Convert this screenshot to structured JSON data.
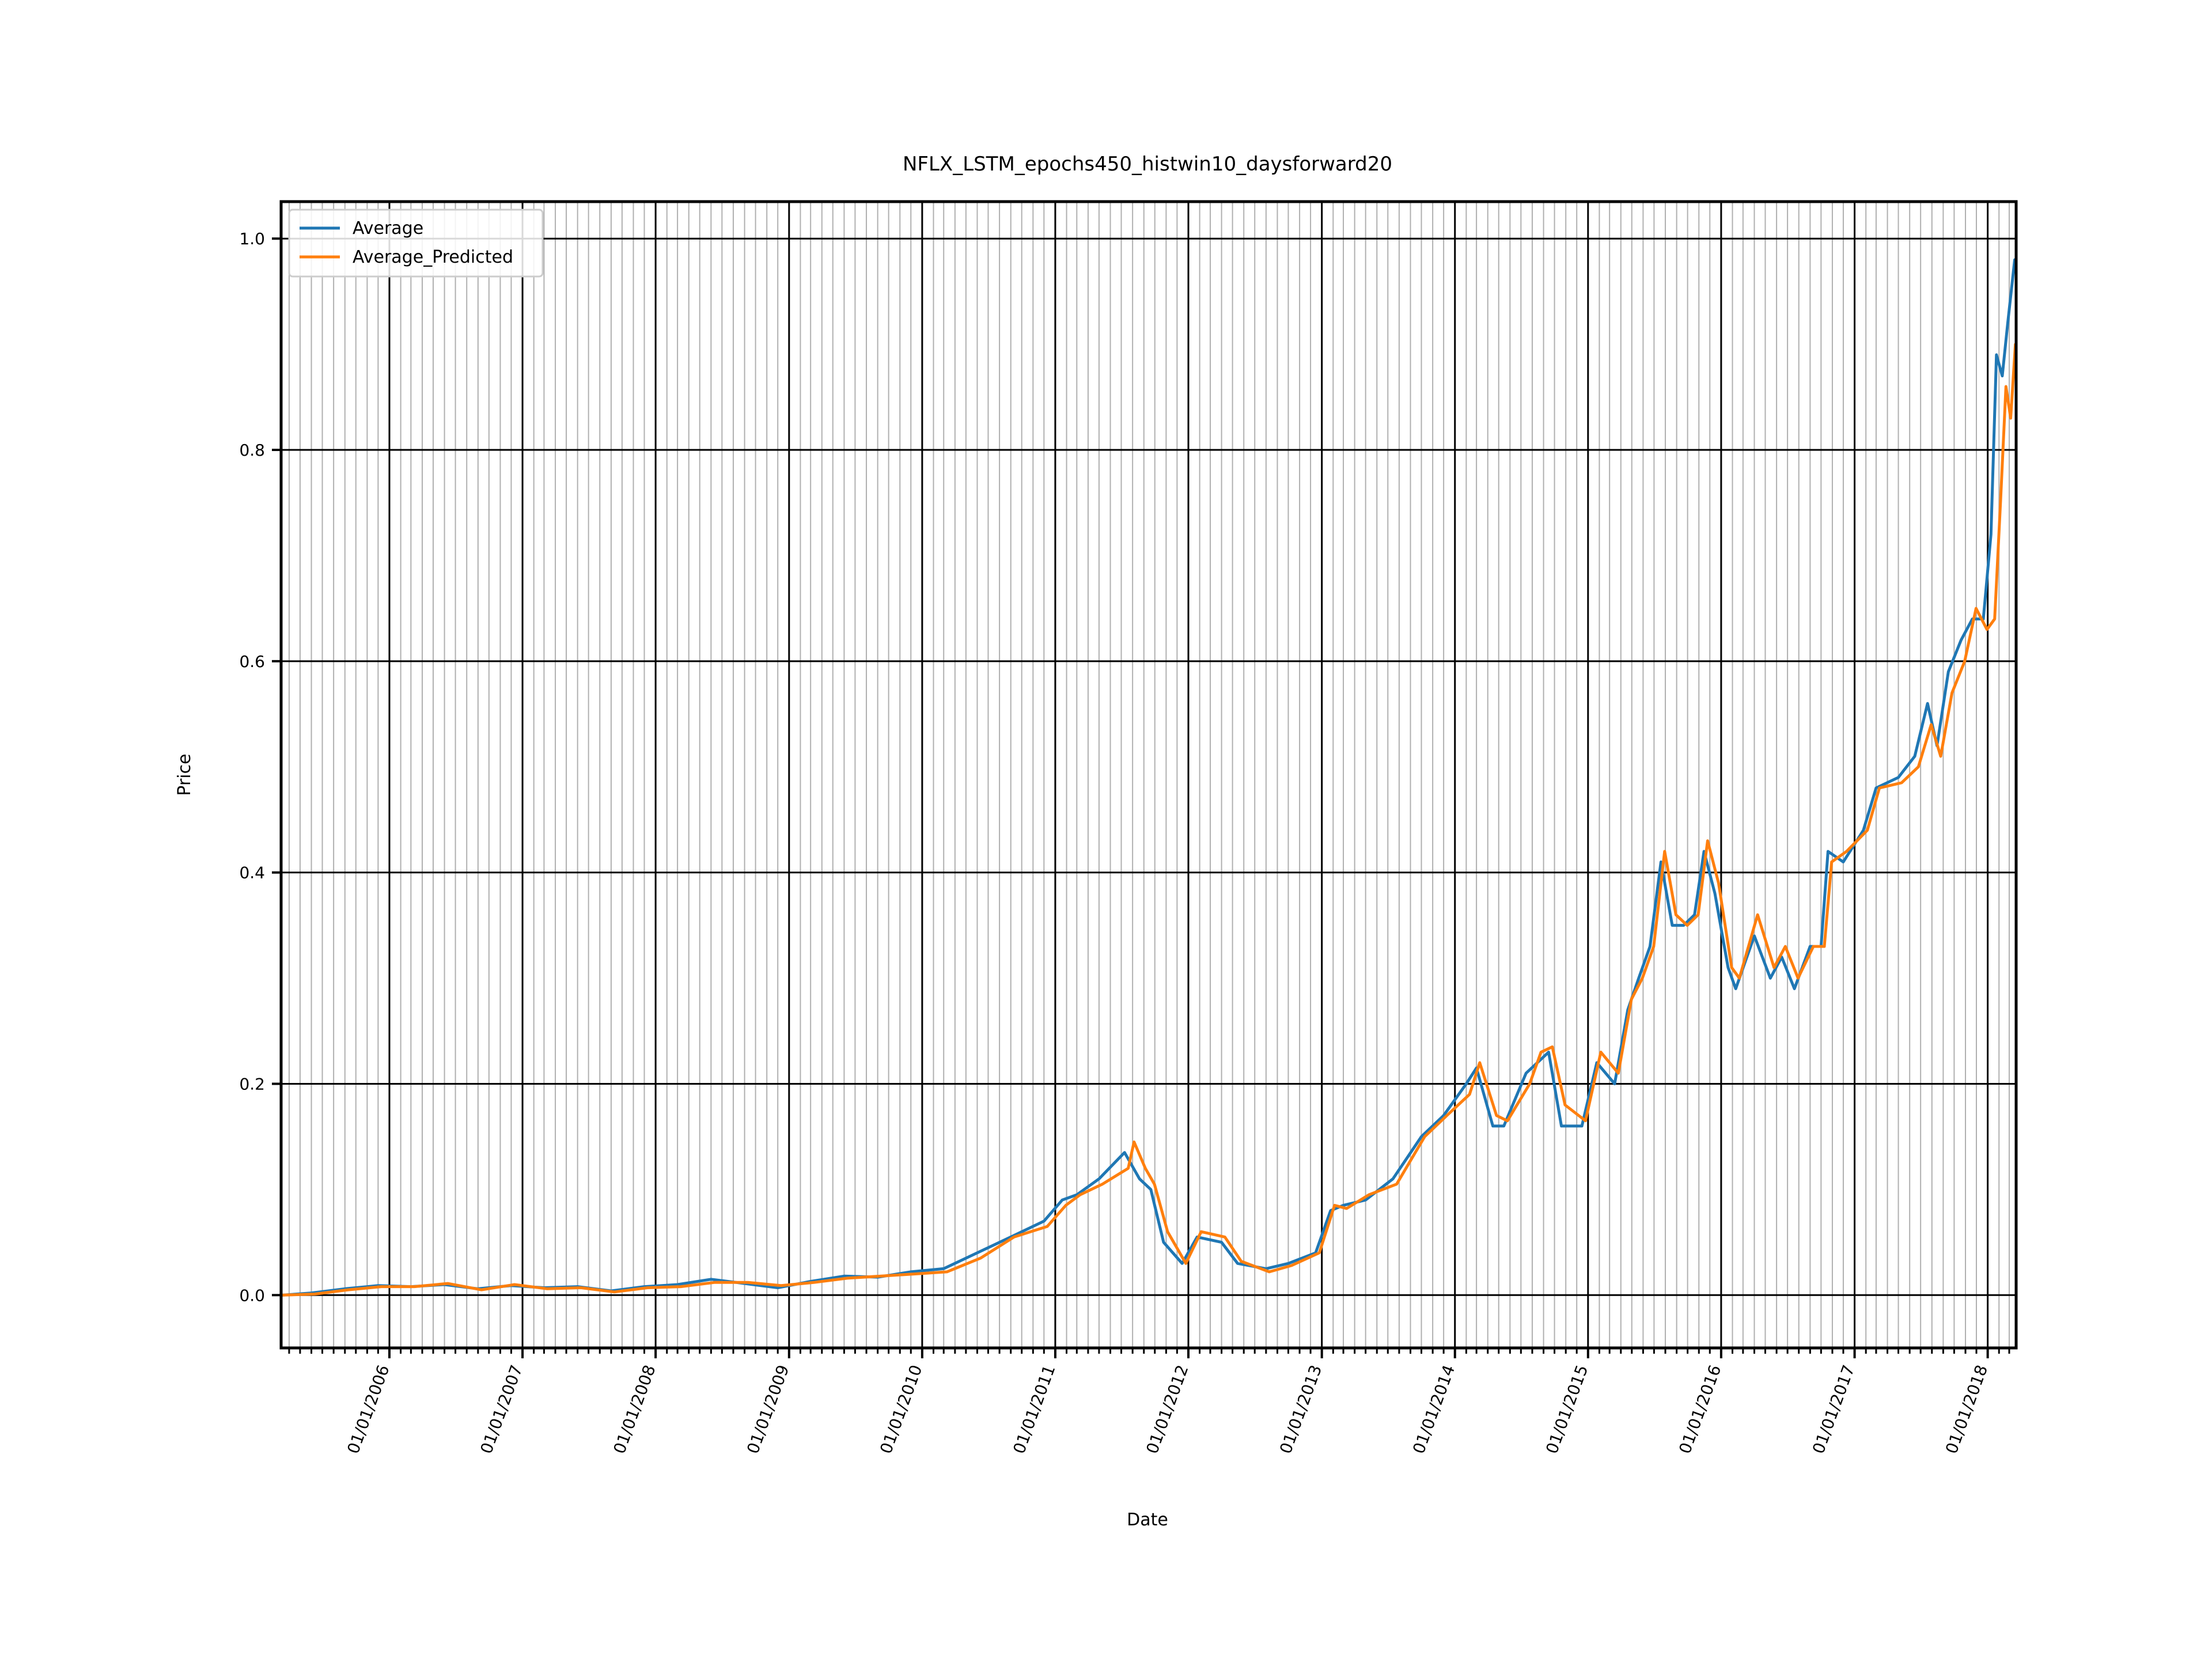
{
  "chart_data": {
    "type": "line",
    "title": "NFLX_LSTM_epochs450_histwin10_daysforward20",
    "xlabel": "Date",
    "ylabel": "Price",
    "xlim": [
      "2005-03-10",
      "2018-03-20"
    ],
    "ylim": [
      -0.05,
      1.035
    ],
    "x_major_ticks": [
      "2006-01-01",
      "2007-01-01",
      "2008-01-01",
      "2009-01-01",
      "2010-01-01",
      "2011-01-01",
      "2012-01-01",
      "2013-01-01",
      "2014-01-01",
      "2015-01-01",
      "2016-01-01",
      "2017-01-01",
      "2018-01-01"
    ],
    "x_tick_labels": [
      "01/01/2006",
      "01/01/2007",
      "01/01/2008",
      "01/01/2009",
      "01/01/2010",
      "01/01/2011",
      "01/01/2012",
      "01/01/2013",
      "01/01/2014",
      "01/01/2015",
      "01/01/2016",
      "01/01/2017",
      "01/01/2018"
    ],
    "y_ticks": [
      0.0,
      0.2,
      0.4,
      0.6,
      0.8,
      1.0
    ],
    "y_tick_labels": [
      "0.0",
      "0.2",
      "0.4",
      "0.6",
      "0.8",
      "1.0"
    ],
    "grid": true,
    "legend": "upper left",
    "series": [
      {
        "name": "Average",
        "color": "#1f77b4",
        "points": [
          [
            "2005-03-15",
            0.0
          ],
          [
            "2005-06-01",
            0.002
          ],
          [
            "2005-09-01",
            0.006
          ],
          [
            "2005-12-01",
            0.009
          ],
          [
            "2006-03-01",
            0.008
          ],
          [
            "2006-06-01",
            0.01
          ],
          [
            "2006-09-01",
            0.006
          ],
          [
            "2006-12-01",
            0.009
          ],
          [
            "2007-03-01",
            0.007
          ],
          [
            "2007-06-01",
            0.008
          ],
          [
            "2007-09-01",
            0.004
          ],
          [
            "2007-12-01",
            0.008
          ],
          [
            "2008-03-01",
            0.01
          ],
          [
            "2008-06-01",
            0.015
          ],
          [
            "2008-09-01",
            0.011
          ],
          [
            "2008-12-01",
            0.007
          ],
          [
            "2009-03-01",
            0.013
          ],
          [
            "2009-06-01",
            0.018
          ],
          [
            "2009-09-01",
            0.017
          ],
          [
            "2009-12-01",
            0.022
          ],
          [
            "2010-03-01",
            0.025
          ],
          [
            "2010-06-01",
            0.04
          ],
          [
            "2010-09-01",
            0.055
          ],
          [
            "2010-12-01",
            0.07
          ],
          [
            "2011-01-20",
            0.09
          ],
          [
            "2011-03-01",
            0.095
          ],
          [
            "2011-05-01",
            0.11
          ],
          [
            "2011-07-10",
            0.135
          ],
          [
            "2011-08-20",
            0.11
          ],
          [
            "2011-09-20",
            0.1
          ],
          [
            "2011-10-25",
            0.05
          ],
          [
            "2011-12-15",
            0.03
          ],
          [
            "2012-01-25",
            0.055
          ],
          [
            "2012-04-01",
            0.05
          ],
          [
            "2012-05-15",
            0.03
          ],
          [
            "2012-08-01",
            0.025
          ],
          [
            "2012-10-01",
            0.03
          ],
          [
            "2012-12-15",
            0.04
          ],
          [
            "2013-01-25",
            0.08
          ],
          [
            "2013-03-01",
            0.085
          ],
          [
            "2013-05-01",
            0.09
          ],
          [
            "2013-07-15",
            0.11
          ],
          [
            "2013-10-01",
            0.15
          ],
          [
            "2013-12-01",
            0.17
          ],
          [
            "2014-02-01",
            0.2
          ],
          [
            "2014-03-01",
            0.215
          ],
          [
            "2014-04-15",
            0.16
          ],
          [
            "2014-05-15",
            0.16
          ],
          [
            "2014-07-15",
            0.21
          ],
          [
            "2014-08-15",
            0.22
          ],
          [
            "2014-09-15",
            0.23
          ],
          [
            "2014-10-20",
            0.16
          ],
          [
            "2014-12-15",
            0.16
          ],
          [
            "2015-01-25",
            0.22
          ],
          [
            "2015-03-15",
            0.2
          ],
          [
            "2015-04-20",
            0.27
          ],
          [
            "2015-05-20",
            0.3
          ],
          [
            "2015-06-20",
            0.33
          ],
          [
            "2015-07-20",
            0.41
          ],
          [
            "2015-08-20",
            0.35
          ],
          [
            "2015-09-20",
            0.35
          ],
          [
            "2015-10-20",
            0.36
          ],
          [
            "2015-11-15",
            0.42
          ],
          [
            "2015-12-15",
            0.38
          ],
          [
            "2016-01-20",
            0.31
          ],
          [
            "2016-02-10",
            0.29
          ],
          [
            "2016-04-01",
            0.34
          ],
          [
            "2016-05-15",
            0.3
          ],
          [
            "2016-06-15",
            0.32
          ],
          [
            "2016-07-20",
            0.29
          ],
          [
            "2016-09-01",
            0.33
          ],
          [
            "2016-10-01",
            0.33
          ],
          [
            "2016-10-20",
            0.42
          ],
          [
            "2016-12-01",
            0.41
          ],
          [
            "2017-01-25",
            0.44
          ],
          [
            "2017-03-01",
            0.48
          ],
          [
            "2017-05-01",
            0.49
          ],
          [
            "2017-06-15",
            0.51
          ],
          [
            "2017-07-20",
            0.56
          ],
          [
            "2017-08-15",
            0.52
          ],
          [
            "2017-09-15",
            0.59
          ],
          [
            "2017-10-20",
            0.62
          ],
          [
            "2017-11-20",
            0.64
          ],
          [
            "2017-12-20",
            0.64
          ],
          [
            "2018-01-10",
            0.72
          ],
          [
            "2018-01-25",
            0.89
          ],
          [
            "2018-02-10",
            0.87
          ],
          [
            "2018-02-25",
            0.92
          ],
          [
            "2018-03-16",
            0.98
          ]
        ]
      },
      {
        "name": "Average_Predicted",
        "color": "#ff7f0e",
        "points": [
          [
            "2005-03-15",
            0.0
          ],
          [
            "2005-06-10",
            0.001
          ],
          [
            "2005-09-10",
            0.005
          ],
          [
            "2005-12-10",
            0.008
          ],
          [
            "2006-03-10",
            0.008
          ],
          [
            "2006-06-10",
            0.011
          ],
          [
            "2006-09-10",
            0.005
          ],
          [
            "2006-12-10",
            0.01
          ],
          [
            "2007-03-10",
            0.006
          ],
          [
            "2007-06-10",
            0.007
          ],
          [
            "2007-09-10",
            0.003
          ],
          [
            "2007-12-10",
            0.007
          ],
          [
            "2008-03-10",
            0.008
          ],
          [
            "2008-06-10",
            0.012
          ],
          [
            "2008-09-10",
            0.012
          ],
          [
            "2008-12-10",
            0.009
          ],
          [
            "2009-03-10",
            0.012
          ],
          [
            "2009-06-10",
            0.016
          ],
          [
            "2009-09-10",
            0.018
          ],
          [
            "2009-12-10",
            0.02
          ],
          [
            "2010-03-10",
            0.022
          ],
          [
            "2010-06-10",
            0.035
          ],
          [
            "2010-09-10",
            0.055
          ],
          [
            "2010-12-10",
            0.065
          ],
          [
            "2011-01-30",
            0.085
          ],
          [
            "2011-03-10",
            0.095
          ],
          [
            "2011-05-10",
            0.105
          ],
          [
            "2011-07-20",
            0.12
          ],
          [
            "2011-08-05",
            0.145
          ],
          [
            "2011-09-05",
            0.12
          ],
          [
            "2011-09-30",
            0.105
          ],
          [
            "2011-11-05",
            0.06
          ],
          [
            "2011-12-25",
            0.03
          ],
          [
            "2012-02-05",
            0.06
          ],
          [
            "2012-04-10",
            0.055
          ],
          [
            "2012-05-25",
            0.032
          ],
          [
            "2012-08-10",
            0.022
          ],
          [
            "2012-10-10",
            0.028
          ],
          [
            "2012-12-25",
            0.04
          ],
          [
            "2013-02-05",
            0.085
          ],
          [
            "2013-03-10",
            0.082
          ],
          [
            "2013-05-10",
            0.095
          ],
          [
            "2013-07-25",
            0.105
          ],
          [
            "2013-10-10",
            0.15
          ],
          [
            "2013-12-10",
            0.17
          ],
          [
            "2014-02-10",
            0.19
          ],
          [
            "2014-03-10",
            0.22
          ],
          [
            "2014-04-25",
            0.17
          ],
          [
            "2014-05-25",
            0.165
          ],
          [
            "2014-07-25",
            0.2
          ],
          [
            "2014-08-25",
            0.23
          ],
          [
            "2014-09-25",
            0.235
          ],
          [
            "2014-10-30",
            0.18
          ],
          [
            "2014-12-25",
            0.165
          ],
          [
            "2015-02-05",
            0.23
          ],
          [
            "2015-03-25",
            0.21
          ],
          [
            "2015-04-30",
            0.28
          ],
          [
            "2015-05-30",
            0.3
          ],
          [
            "2015-06-30",
            0.33
          ],
          [
            "2015-07-30",
            0.42
          ],
          [
            "2015-08-30",
            0.36
          ],
          [
            "2015-09-30",
            0.35
          ],
          [
            "2015-10-30",
            0.36
          ],
          [
            "2015-11-25",
            0.43
          ],
          [
            "2015-12-25",
            0.39
          ],
          [
            "2016-01-30",
            0.31
          ],
          [
            "2016-02-20",
            0.3
          ],
          [
            "2016-04-10",
            0.36
          ],
          [
            "2016-05-25",
            0.31
          ],
          [
            "2016-06-25",
            0.33
          ],
          [
            "2016-07-30",
            0.3
          ],
          [
            "2016-09-10",
            0.33
          ],
          [
            "2016-10-10",
            0.33
          ],
          [
            "2016-10-30",
            0.41
          ],
          [
            "2016-12-10",
            0.42
          ],
          [
            "2017-02-05",
            0.44
          ],
          [
            "2017-03-10",
            0.48
          ],
          [
            "2017-05-10",
            0.485
          ],
          [
            "2017-06-25",
            0.5
          ],
          [
            "2017-07-30",
            0.54
          ],
          [
            "2017-08-25",
            0.51
          ],
          [
            "2017-09-25",
            0.57
          ],
          [
            "2017-10-30",
            0.6
          ],
          [
            "2017-11-30",
            0.65
          ],
          [
            "2017-12-30",
            0.63
          ],
          [
            "2018-01-20",
            0.64
          ],
          [
            "2018-02-05",
            0.75
          ],
          [
            "2018-02-20",
            0.86
          ],
          [
            "2018-03-05",
            0.83
          ],
          [
            "2018-03-18",
            0.9
          ]
        ]
      }
    ]
  }
}
